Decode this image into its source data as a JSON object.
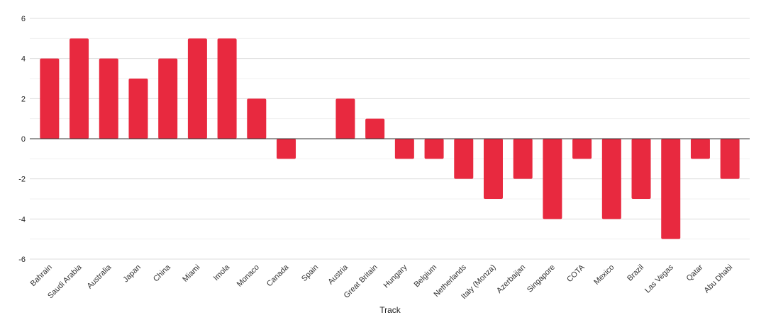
{
  "chart_data": {
    "type": "bar",
    "title": "",
    "xlabel": "Track",
    "ylabel": "",
    "ylim": [
      -6,
      6
    ],
    "yticks": [
      -6,
      -4,
      -2,
      0,
      2,
      4,
      6
    ],
    "grid": true,
    "bar_color": "#e8293f",
    "categories": [
      "Bahrain",
      "Saudi Arabia",
      "Australia",
      "Japan",
      "China",
      "Miami",
      "Imola",
      "Monaco",
      "Canada",
      "Spain",
      "Austria",
      "Great Britain",
      "Hungary",
      "Belgium",
      "Netherlands",
      "Italy (Monza)",
      "Azerbaijan",
      "Singapore",
      "COTA",
      "Mexico",
      "Brazil",
      "Las Vegas",
      "Qatar",
      "Abu Dhabi"
    ],
    "values": [
      4,
      5,
      4,
      3,
      4,
      5,
      5,
      2,
      -1,
      0,
      2,
      1,
      -1,
      -1,
      -2,
      -3,
      -2,
      -4,
      -1,
      -4,
      -3,
      -5,
      -1,
      -2
    ]
  }
}
